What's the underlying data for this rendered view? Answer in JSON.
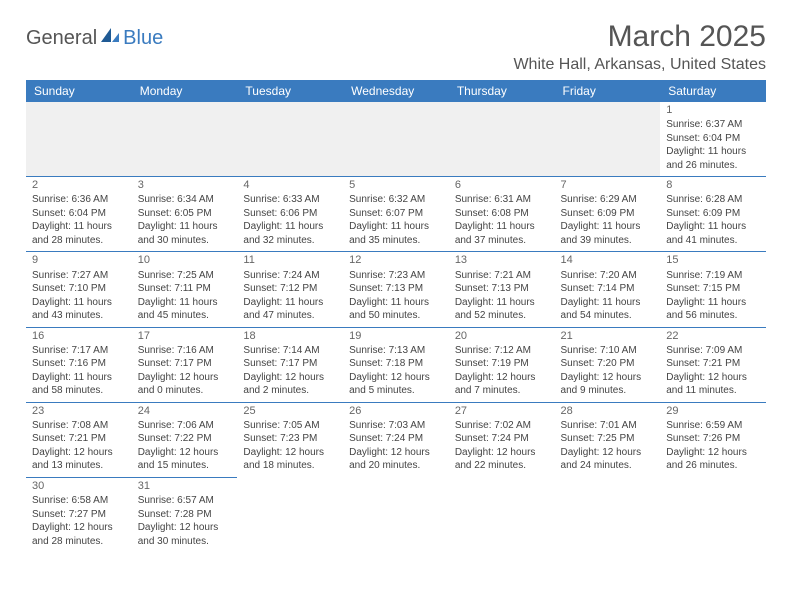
{
  "brand": {
    "part1": "General",
    "part2": "Blue"
  },
  "title": "March 2025",
  "location": "White Hall, Arkansas, United States",
  "colors": {
    "header_bg": "#3a7bbf",
    "header_text": "#ffffff",
    "grid_line": "#3a7bbf",
    "blank_bg": "#f0f0f0",
    "text": "#444444",
    "title_text": "#555555",
    "background": "#ffffff"
  },
  "typography": {
    "title_fontsize": 30,
    "location_fontsize": 16,
    "dayheader_fontsize": 12,
    "cell_fontsize": 10
  },
  "day_headers": [
    "Sunday",
    "Monday",
    "Tuesday",
    "Wednesday",
    "Thursday",
    "Friday",
    "Saturday"
  ],
  "weeks": [
    [
      null,
      null,
      null,
      null,
      null,
      null,
      {
        "n": "1",
        "sr": "Sunrise: 6:37 AM",
        "ss": "Sunset: 6:04 PM",
        "d1": "Daylight: 11 hours",
        "d2": "and 26 minutes."
      }
    ],
    [
      {
        "n": "2",
        "sr": "Sunrise: 6:36 AM",
        "ss": "Sunset: 6:04 PM",
        "d1": "Daylight: 11 hours",
        "d2": "and 28 minutes."
      },
      {
        "n": "3",
        "sr": "Sunrise: 6:34 AM",
        "ss": "Sunset: 6:05 PM",
        "d1": "Daylight: 11 hours",
        "d2": "and 30 minutes."
      },
      {
        "n": "4",
        "sr": "Sunrise: 6:33 AM",
        "ss": "Sunset: 6:06 PM",
        "d1": "Daylight: 11 hours",
        "d2": "and 32 minutes."
      },
      {
        "n": "5",
        "sr": "Sunrise: 6:32 AM",
        "ss": "Sunset: 6:07 PM",
        "d1": "Daylight: 11 hours",
        "d2": "and 35 minutes."
      },
      {
        "n": "6",
        "sr": "Sunrise: 6:31 AM",
        "ss": "Sunset: 6:08 PM",
        "d1": "Daylight: 11 hours",
        "d2": "and 37 minutes."
      },
      {
        "n": "7",
        "sr": "Sunrise: 6:29 AM",
        "ss": "Sunset: 6:09 PM",
        "d1": "Daylight: 11 hours",
        "d2": "and 39 minutes."
      },
      {
        "n": "8",
        "sr": "Sunrise: 6:28 AM",
        "ss": "Sunset: 6:09 PM",
        "d1": "Daylight: 11 hours",
        "d2": "and 41 minutes."
      }
    ],
    [
      {
        "n": "9",
        "sr": "Sunrise: 7:27 AM",
        "ss": "Sunset: 7:10 PM",
        "d1": "Daylight: 11 hours",
        "d2": "and 43 minutes."
      },
      {
        "n": "10",
        "sr": "Sunrise: 7:25 AM",
        "ss": "Sunset: 7:11 PM",
        "d1": "Daylight: 11 hours",
        "d2": "and 45 minutes."
      },
      {
        "n": "11",
        "sr": "Sunrise: 7:24 AM",
        "ss": "Sunset: 7:12 PM",
        "d1": "Daylight: 11 hours",
        "d2": "and 47 minutes."
      },
      {
        "n": "12",
        "sr": "Sunrise: 7:23 AM",
        "ss": "Sunset: 7:13 PM",
        "d1": "Daylight: 11 hours",
        "d2": "and 50 minutes."
      },
      {
        "n": "13",
        "sr": "Sunrise: 7:21 AM",
        "ss": "Sunset: 7:13 PM",
        "d1": "Daylight: 11 hours",
        "d2": "and 52 minutes."
      },
      {
        "n": "14",
        "sr": "Sunrise: 7:20 AM",
        "ss": "Sunset: 7:14 PM",
        "d1": "Daylight: 11 hours",
        "d2": "and 54 minutes."
      },
      {
        "n": "15",
        "sr": "Sunrise: 7:19 AM",
        "ss": "Sunset: 7:15 PM",
        "d1": "Daylight: 11 hours",
        "d2": "and 56 minutes."
      }
    ],
    [
      {
        "n": "16",
        "sr": "Sunrise: 7:17 AM",
        "ss": "Sunset: 7:16 PM",
        "d1": "Daylight: 11 hours",
        "d2": "and 58 minutes."
      },
      {
        "n": "17",
        "sr": "Sunrise: 7:16 AM",
        "ss": "Sunset: 7:17 PM",
        "d1": "Daylight: 12 hours",
        "d2": "and 0 minutes."
      },
      {
        "n": "18",
        "sr": "Sunrise: 7:14 AM",
        "ss": "Sunset: 7:17 PM",
        "d1": "Daylight: 12 hours",
        "d2": "and 2 minutes."
      },
      {
        "n": "19",
        "sr": "Sunrise: 7:13 AM",
        "ss": "Sunset: 7:18 PM",
        "d1": "Daylight: 12 hours",
        "d2": "and 5 minutes."
      },
      {
        "n": "20",
        "sr": "Sunrise: 7:12 AM",
        "ss": "Sunset: 7:19 PM",
        "d1": "Daylight: 12 hours",
        "d2": "and 7 minutes."
      },
      {
        "n": "21",
        "sr": "Sunrise: 7:10 AM",
        "ss": "Sunset: 7:20 PM",
        "d1": "Daylight: 12 hours",
        "d2": "and 9 minutes."
      },
      {
        "n": "22",
        "sr": "Sunrise: 7:09 AM",
        "ss": "Sunset: 7:21 PM",
        "d1": "Daylight: 12 hours",
        "d2": "and 11 minutes."
      }
    ],
    [
      {
        "n": "23",
        "sr": "Sunrise: 7:08 AM",
        "ss": "Sunset: 7:21 PM",
        "d1": "Daylight: 12 hours",
        "d2": "and 13 minutes."
      },
      {
        "n": "24",
        "sr": "Sunrise: 7:06 AM",
        "ss": "Sunset: 7:22 PM",
        "d1": "Daylight: 12 hours",
        "d2": "and 15 minutes."
      },
      {
        "n": "25",
        "sr": "Sunrise: 7:05 AM",
        "ss": "Sunset: 7:23 PM",
        "d1": "Daylight: 12 hours",
        "d2": "and 18 minutes."
      },
      {
        "n": "26",
        "sr": "Sunrise: 7:03 AM",
        "ss": "Sunset: 7:24 PM",
        "d1": "Daylight: 12 hours",
        "d2": "and 20 minutes."
      },
      {
        "n": "27",
        "sr": "Sunrise: 7:02 AM",
        "ss": "Sunset: 7:24 PM",
        "d1": "Daylight: 12 hours",
        "d2": "and 22 minutes."
      },
      {
        "n": "28",
        "sr": "Sunrise: 7:01 AM",
        "ss": "Sunset: 7:25 PM",
        "d1": "Daylight: 12 hours",
        "d2": "and 24 minutes."
      },
      {
        "n": "29",
        "sr": "Sunrise: 6:59 AM",
        "ss": "Sunset: 7:26 PM",
        "d1": "Daylight: 12 hours",
        "d2": "and 26 minutes."
      }
    ],
    [
      {
        "n": "30",
        "sr": "Sunrise: 6:58 AM",
        "ss": "Sunset: 7:27 PM",
        "d1": "Daylight: 12 hours",
        "d2": "and 28 minutes."
      },
      {
        "n": "31",
        "sr": "Sunrise: 6:57 AM",
        "ss": "Sunset: 7:28 PM",
        "d1": "Daylight: 12 hours",
        "d2": "and 30 minutes."
      },
      null,
      null,
      null,
      null,
      null
    ]
  ]
}
